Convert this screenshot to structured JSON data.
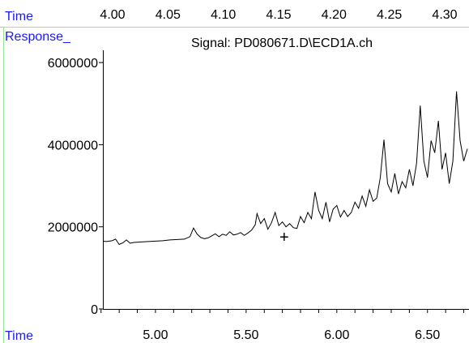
{
  "top_axis": {
    "label": "Time",
    "ticks": [
      "4.00",
      "4.05",
      "4.10",
      "4.15",
      "4.20",
      "4.25",
      "4.30"
    ]
  },
  "panel": {
    "y_header": "Response_",
    "x_footer": "Time"
  },
  "chart_data": {
    "type": "line",
    "title": "Signal: PD080671.D\\ECD1A.ch",
    "xlabel": "Time",
    "ylabel": "Response_",
    "xlim": [
      4.71,
      6.72
    ],
    "ylim": [
      0,
      6200000
    ],
    "x_ticks": [
      "5.00",
      "5.50",
      "6.00",
      "6.50"
    ],
    "x_tick_values": [
      5.0,
      5.5,
      6.0,
      6.5
    ],
    "y_ticks": [
      "0",
      "2000000",
      "4000000",
      "6000000"
    ],
    "y_tick_values": [
      0,
      2000000,
      4000000,
      6000000
    ],
    "grid": false,
    "line_color": "#000000",
    "accent_color": "#1a1aff",
    "frame_color": "#9be39b",
    "cursor_marker": {
      "x": 5.71,
      "y": 1760000,
      "symbol": "+"
    },
    "series": [
      {
        "values": [
          [
            4.71,
            1650000
          ],
          [
            4.73,
            1640000
          ],
          [
            4.76,
            1660000
          ],
          [
            4.78,
            1700000
          ],
          [
            4.8,
            1570000
          ],
          [
            4.82,
            1610000
          ],
          [
            4.84,
            1680000
          ],
          [
            4.86,
            1600000
          ],
          [
            4.88,
            1620000
          ],
          [
            4.92,
            1630000
          ],
          [
            4.96,
            1640000
          ],
          [
            5.0,
            1650000
          ],
          [
            5.04,
            1660000
          ],
          [
            5.08,
            1680000
          ],
          [
            5.12,
            1690000
          ],
          [
            5.16,
            1700000
          ],
          [
            5.19,
            1760000
          ],
          [
            5.21,
            1970000
          ],
          [
            5.23,
            1820000
          ],
          [
            5.25,
            1740000
          ],
          [
            5.27,
            1710000
          ],
          [
            5.29,
            1730000
          ],
          [
            5.31,
            1780000
          ],
          [
            5.33,
            1830000
          ],
          [
            5.35,
            1760000
          ],
          [
            5.37,
            1820000
          ],
          [
            5.39,
            1790000
          ],
          [
            5.41,
            1880000
          ],
          [
            5.43,
            1800000
          ],
          [
            5.45,
            1820000
          ],
          [
            5.47,
            1860000
          ],
          [
            5.49,
            1790000
          ],
          [
            5.51,
            1850000
          ],
          [
            5.53,
            1920000
          ],
          [
            5.55,
            2050000
          ],
          [
            5.56,
            2320000
          ],
          [
            5.58,
            2080000
          ],
          [
            5.6,
            2200000
          ],
          [
            5.62,
            1940000
          ],
          [
            5.64,
            2100000
          ],
          [
            5.66,
            2350000
          ],
          [
            5.68,
            2030000
          ],
          [
            5.7,
            2120000
          ],
          [
            5.72,
            2000000
          ],
          [
            5.74,
            2080000
          ],
          [
            5.76,
            1980000
          ],
          [
            5.78,
            1960000
          ],
          [
            5.8,
            2250000
          ],
          [
            5.82,
            2100000
          ],
          [
            5.84,
            2350000
          ],
          [
            5.86,
            2200000
          ],
          [
            5.88,
            2850000
          ],
          [
            5.9,
            2400000
          ],
          [
            5.92,
            2200000
          ],
          [
            5.94,
            2600000
          ],
          [
            5.96,
            2120000
          ],
          [
            5.98,
            2430000
          ],
          [
            6.0,
            2520000
          ],
          [
            6.02,
            2240000
          ],
          [
            6.04,
            2400000
          ],
          [
            6.06,
            2250000
          ],
          [
            6.08,
            2350000
          ],
          [
            6.1,
            2600000
          ],
          [
            6.12,
            2450000
          ],
          [
            6.14,
            2750000
          ],
          [
            6.16,
            2500000
          ],
          [
            6.18,
            2900000
          ],
          [
            6.2,
            2620000
          ],
          [
            6.22,
            2700000
          ],
          [
            6.24,
            3200000
          ],
          [
            6.26,
            4120000
          ],
          [
            6.28,
            3050000
          ],
          [
            6.3,
            2850000
          ],
          [
            6.32,
            3300000
          ],
          [
            6.34,
            2800000
          ],
          [
            6.36,
            3100000
          ],
          [
            6.38,
            2950000
          ],
          [
            6.4,
            3400000
          ],
          [
            6.42,
            3000000
          ],
          [
            6.44,
            3550000
          ],
          [
            6.46,
            4950000
          ],
          [
            6.48,
            3600000
          ],
          [
            6.5,
            3200000
          ],
          [
            6.52,
            4100000
          ],
          [
            6.54,
            3800000
          ],
          [
            6.56,
            4580000
          ],
          [
            6.58,
            3400000
          ],
          [
            6.6,
            3800000
          ],
          [
            6.62,
            3050000
          ],
          [
            6.64,
            3600000
          ],
          [
            6.66,
            5300000
          ],
          [
            6.68,
            4100000
          ],
          [
            6.7,
            3600000
          ],
          [
            6.72,
            3900000
          ]
        ]
      }
    ]
  }
}
